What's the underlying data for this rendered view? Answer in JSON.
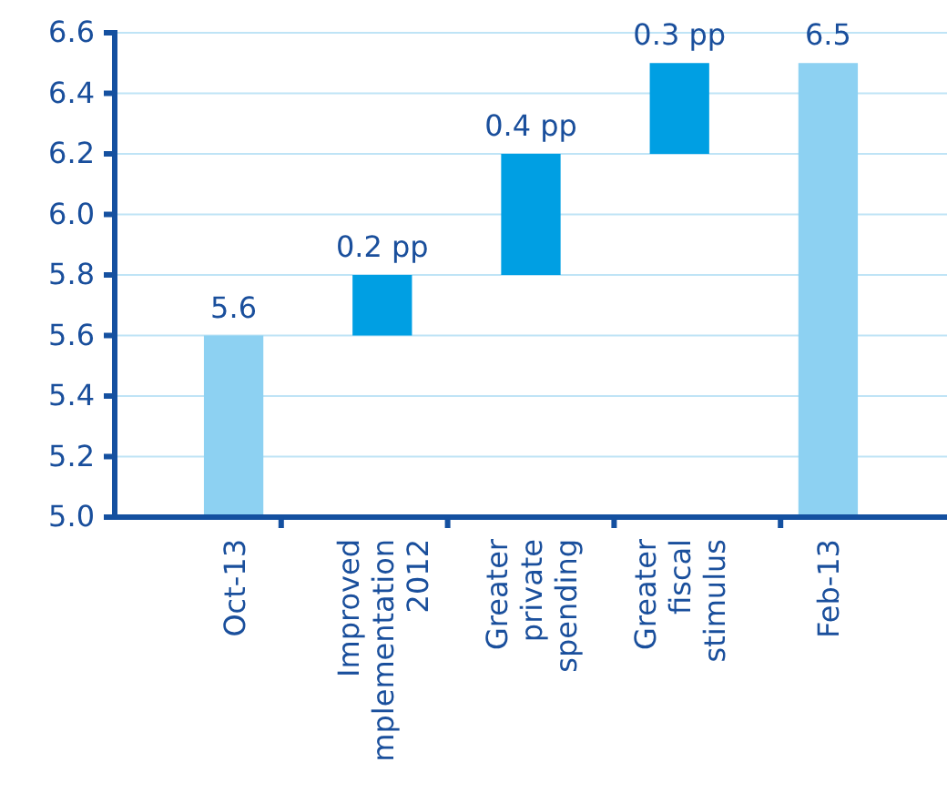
{
  "chart_data": {
    "type": "bar",
    "categories": [
      "Oct-13",
      "Improved\nmplementation\n2012",
      "Greater\nprivate\nspending",
      "Greater\nfiscal\nstimulus",
      "Feb-13"
    ],
    "values": [
      5.6,
      0.2,
      0.4,
      0.3,
      6.5
    ],
    "base": [
      null,
      5.6,
      5.8,
      6.2,
      null
    ],
    "colors": [
      "#8dd1f2",
      "#009fe3",
      "#009fe3",
      "#009fe3",
      "#8dd1f2"
    ],
    "value_labels": [
      "5.6",
      "0.2 pp",
      "0.4 pp",
      "0.3 pp",
      "6.5"
    ],
    "ylim": [
      5.0,
      6.6
    ],
    "yticks": [
      {
        "value": 5.0,
        "label": "5.0"
      },
      {
        "value": 5.2,
        "label": "5.2"
      },
      {
        "value": 5.4,
        "label": "5.4"
      },
      {
        "value": 5.6,
        "label": "5.6"
      },
      {
        "value": 5.8,
        "label": "5.8"
      },
      {
        "value": 6.0,
        "label": "6.0"
      },
      {
        "value": 6.2,
        "label": "6.2"
      },
      {
        "value": 6.4,
        "label": "6.4"
      },
      {
        "value": 6.6,
        "label": "6.6"
      }
    ],
    "grid": "y"
  }
}
